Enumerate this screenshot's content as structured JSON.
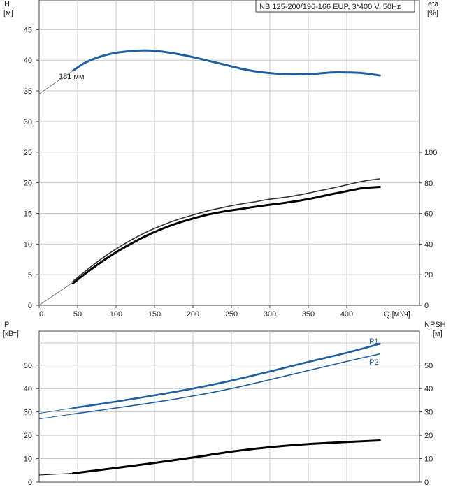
{
  "chart_data": [
    {
      "type": "line",
      "title": "NB 125-200/196-166 EUP, 3*400 V, 50Hz",
      "xlabel": "Q [м³/ч]",
      "ylabel_left_name": "H",
      "ylabel_left_unit": "[м]",
      "ylabel_right_name": "eta",
      "ylabel_right_unit": "[%]",
      "xlim": [
        0,
        440
      ],
      "ylim_left": [
        0,
        48
      ],
      "ylim_right": [
        0,
        115
      ],
      "grid": true,
      "x_ticks": [
        0,
        50,
        100,
        150,
        200,
        250,
        300,
        350,
        400
      ],
      "y_left_ticks": [
        0,
        5,
        10,
        15,
        20,
        25,
        30,
        35,
        40,
        45
      ],
      "y_right_ticks": [
        0,
        20,
        40,
        60,
        80,
        100
      ],
      "annotations": [
        "181 мм"
      ],
      "series": [
        {
          "role": "head",
          "axis": "left",
          "color": "#1f5fa0",
          "x": [
            44,
            60,
            80,
            100,
            120,
            140,
            160,
            180,
            200,
            220,
            240,
            260,
            280,
            300,
            320,
            340,
            360,
            380,
            400,
            420,
            443
          ],
          "values": [
            38.3,
            39.6,
            40.6,
            41.2,
            41.5,
            41.6,
            41.4,
            41.0,
            40.5,
            39.9,
            39.3,
            38.7,
            38.2,
            37.9,
            37.7,
            37.7,
            37.8,
            38.0,
            38.0,
            37.9,
            37.5
          ]
        },
        {
          "role": "head-extension",
          "axis": "left",
          "color": "#777777",
          "x": [
            0,
            44
          ],
          "values": [
            34.5,
            38.3
          ]
        },
        {
          "role": "efficiency-upper",
          "axis": "right",
          "color": "#333333",
          "x": [
            44,
            60,
            80,
            100,
            120,
            140,
            160,
            180,
            200,
            220,
            240,
            260,
            280,
            300,
            320,
            340,
            360,
            380,
            400,
            420,
            443
          ],
          "values": [
            15.7,
            22.3,
            30.0,
            36.8,
            42.8,
            48.0,
            52.3,
            56.0,
            59.0,
            61.8,
            64.0,
            66.0,
            67.6,
            69.3,
            70.6,
            72.3,
            74.4,
            76.5,
            78.7,
            81.0,
            82.7
          ]
        },
        {
          "role": "efficiency-lower",
          "axis": "right",
          "color": "#000000",
          "x": [
            44,
            60,
            80,
            100,
            120,
            140,
            160,
            180,
            200,
            220,
            240,
            260,
            280,
            300,
            320,
            340,
            360,
            380,
            400,
            420,
            443
          ],
          "values": [
            14.4,
            20.7,
            28.0,
            34.6,
            40.4,
            45.6,
            50.0,
            53.7,
            56.7,
            59.3,
            61.3,
            62.8,
            64.3,
            65.7,
            67.0,
            68.5,
            70.4,
            72.6,
            74.6,
            76.5,
            77.4
          ]
        },
        {
          "role": "efficiency-extension",
          "axis": "right",
          "color": "#777777",
          "x": [
            0,
            44
          ],
          "values": [
            0,
            15
          ]
        }
      ]
    },
    {
      "type": "line",
      "ylabel_left_name": "P",
      "ylabel_left_unit": "[кВт]",
      "ylabel_right_name": "NPSH",
      "ylabel_right_unit": "[м]",
      "xlim": [
        0,
        440
      ],
      "ylim": [
        0,
        66
      ],
      "grid": true,
      "y_left_ticks": [
        0,
        10,
        20,
        30,
        40,
        50
      ],
      "y_right_ticks": [
        0,
        10,
        20,
        30,
        40,
        50
      ],
      "series": [
        {
          "name": "P1",
          "color": "#1f5fa0",
          "x": [
            0,
            44,
            100,
            150,
            200,
            250,
            300,
            350,
            400,
            443
          ],
          "values": [
            29.4,
            31.7,
            34.4,
            37.1,
            40.0,
            43.4,
            47.3,
            51.4,
            55.3,
            59.1
          ]
        },
        {
          "name": "P2",
          "color": "#1f5fa0",
          "x": [
            0,
            44,
            100,
            150,
            200,
            250,
            300,
            350,
            400,
            443
          ],
          "values": [
            27.0,
            29.1,
            31.7,
            34.1,
            36.8,
            40.0,
            43.8,
            47.7,
            51.6,
            54.8
          ]
        },
        {
          "role": "npsh",
          "color": "#000000",
          "x": [
            0,
            44,
            100,
            150,
            200,
            250,
            300,
            350,
            400,
            443
          ],
          "values": [
            3.0,
            3.7,
            6.0,
            8.2,
            10.5,
            13.0,
            14.9,
            16.2,
            17.1,
            17.8
          ]
        }
      ]
    }
  ]
}
